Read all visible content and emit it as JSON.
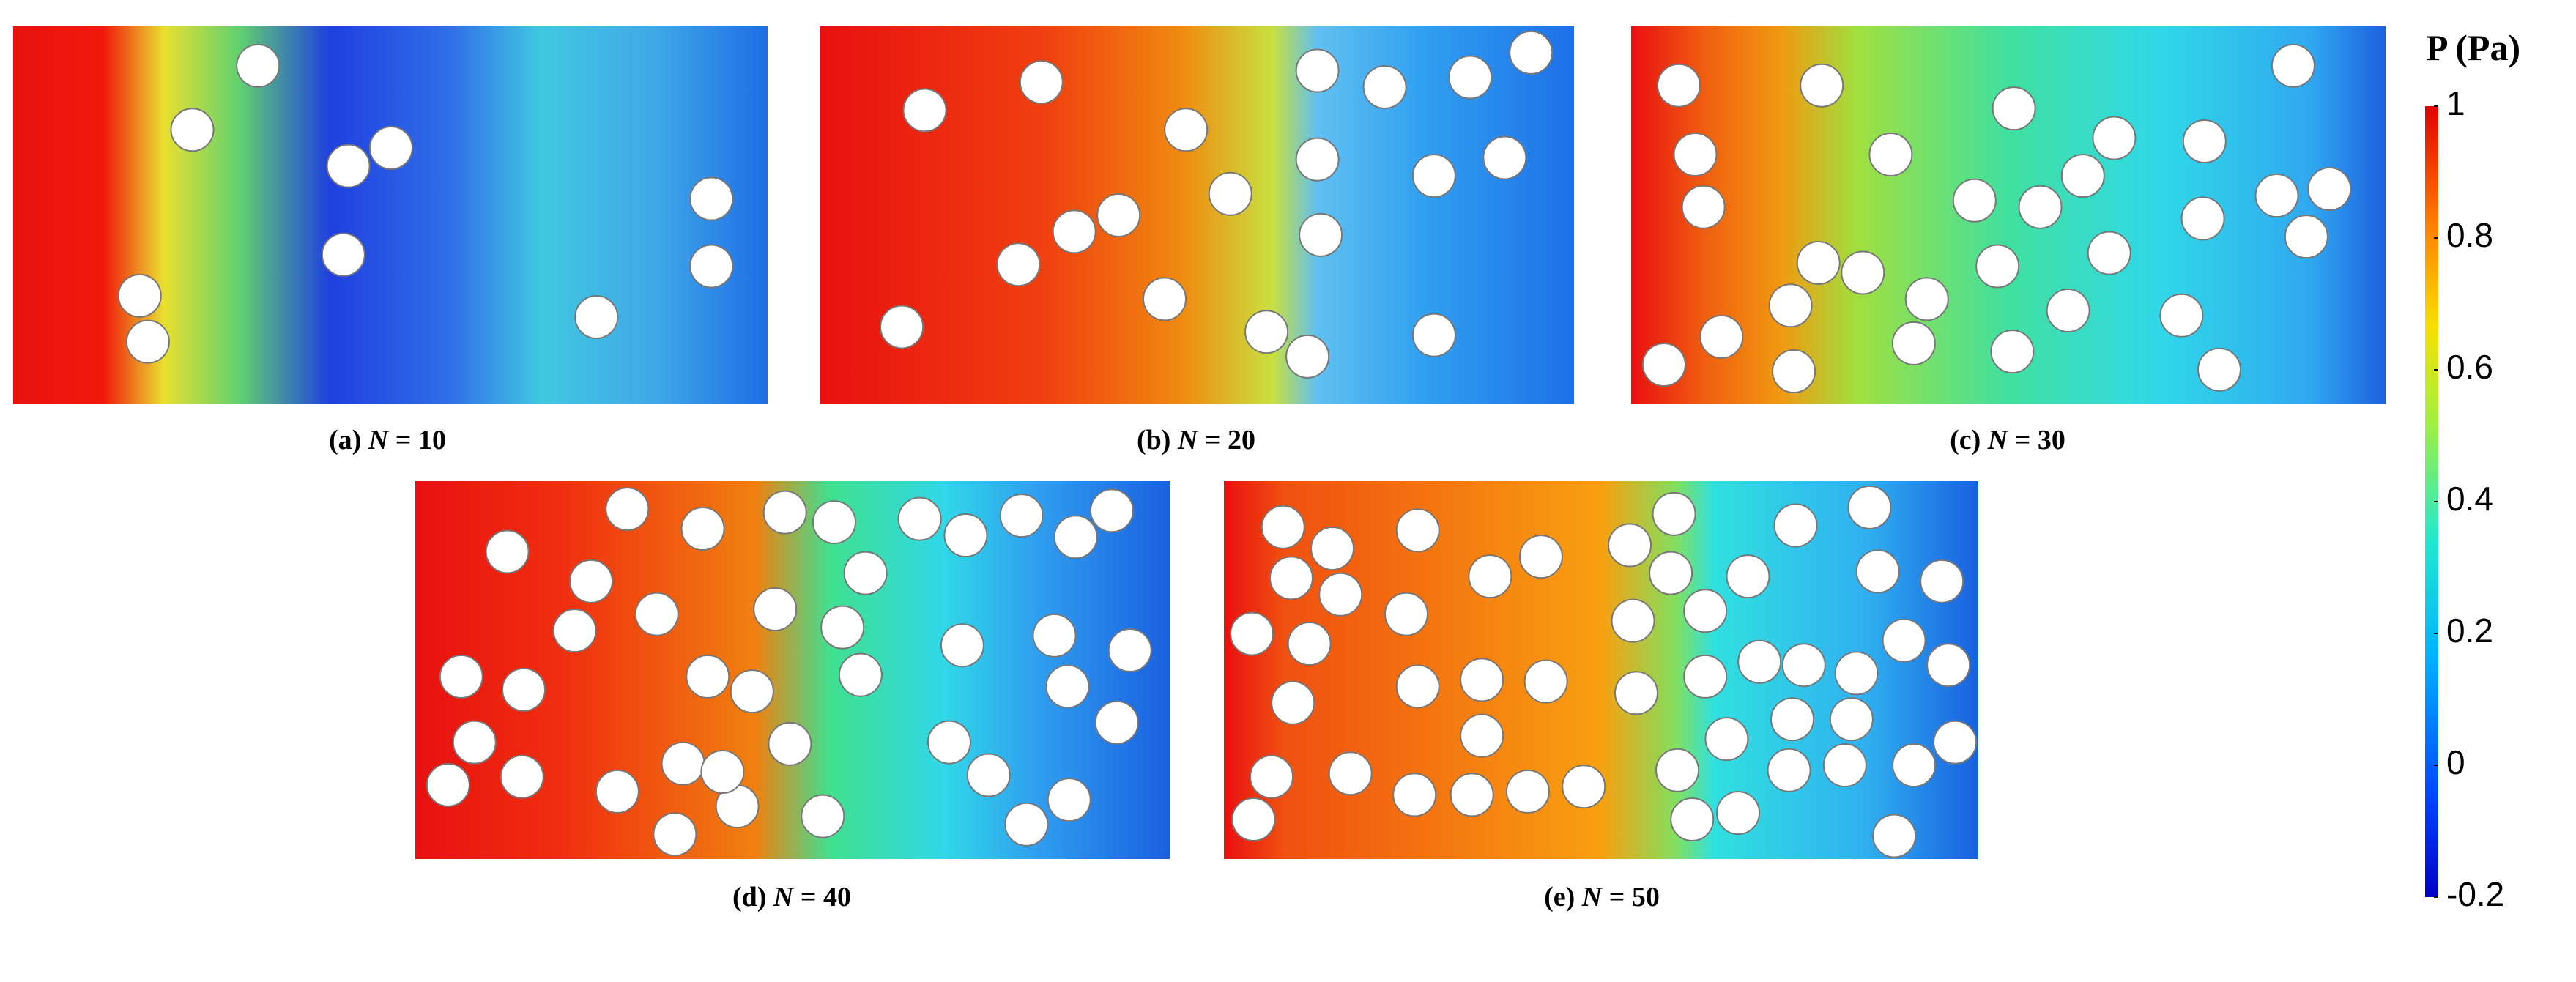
{
  "panels": [
    {
      "label": "(a)",
      "variable": "N",
      "value_text": "= 10"
    },
    {
      "label": "(b)",
      "variable": "N",
      "value_text": "= 20"
    },
    {
      "label": "(c)",
      "variable": "N",
      "value_text": "= 30"
    },
    {
      "label": "(d)",
      "variable": "N",
      "value_text": "= 40"
    },
    {
      "label": "(e)",
      "variable": "N",
      "value_text": "= 50"
    }
  ],
  "colorbar": {
    "title": "P (Pa)",
    "lim": [
      -0.2,
      1
    ],
    "ticks": [
      1,
      0.8,
      0.6,
      0.4,
      0.2,
      0,
      -0.2
    ]
  }
}
